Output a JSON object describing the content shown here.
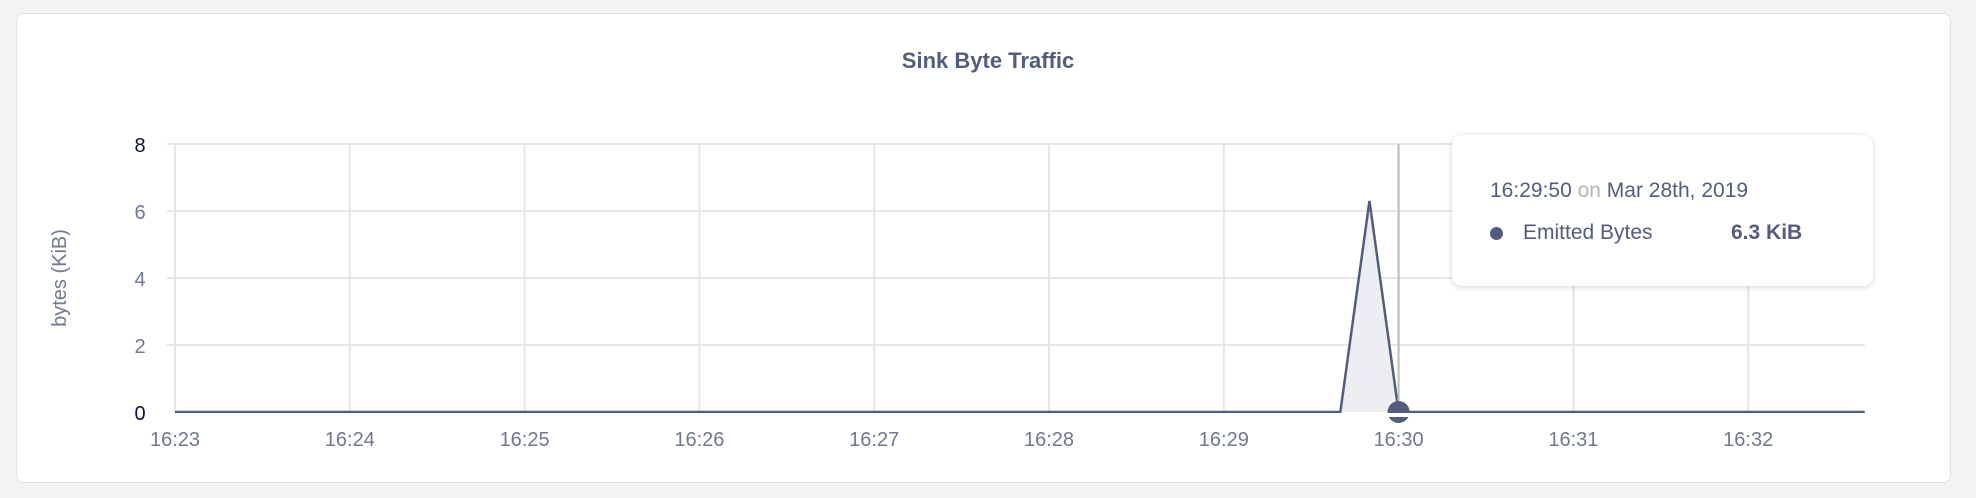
{
  "chart_data": {
    "type": "area",
    "title": "Sink Byte Traffic",
    "ylabel": "bytes (KiB)",
    "xlabel": "",
    "ylim": [
      0,
      8
    ],
    "yticks": [
      "0",
      "2",
      "4",
      "6",
      "8"
    ],
    "xticks": [
      "16:23",
      "16:24",
      "16:25",
      "16:26",
      "16:27",
      "16:28",
      "16:29",
      "16:30",
      "16:31",
      "16:32"
    ],
    "xlim": [
      "16:23:00",
      "16:32:40"
    ],
    "grid": true,
    "series": [
      {
        "name": "Emitted Bytes",
        "color": "#525d7b",
        "x": [
          "16:23:00",
          "16:29:40",
          "16:29:50",
          "16:30:00",
          "16:32:40"
        ],
        "values": [
          0,
          0,
          6.3,
          0,
          0
        ]
      }
    ],
    "hover_x": "16:30:00",
    "tooltip": {
      "time": "16:29:50",
      "on": "on",
      "date": "Mar 28th, 2019",
      "series_name": "Emitted Bytes",
      "value": "6.3 KiB"
    }
  }
}
